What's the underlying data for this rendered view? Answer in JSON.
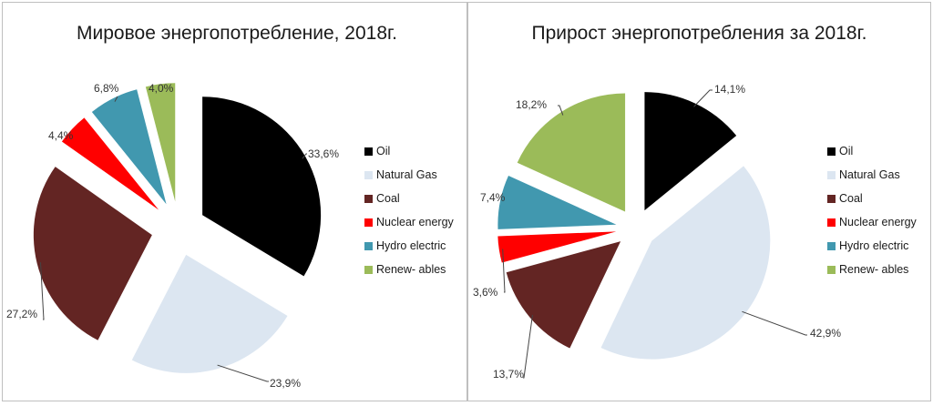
{
  "chart_data": [
    {
      "type": "pie",
      "title": "Мировое энергопотребление, 2018г.",
      "categories": [
        "Oil",
        "Natural Gas",
        "Coal",
        "Nuclear energy",
        "Hydro electric",
        "Renew- ables"
      ],
      "values": [
        33.6,
        23.9,
        27.2,
        4.4,
        6.8,
        4.0
      ],
      "labels": [
        "33,6%",
        "23,9%",
        "27,2%",
        "4,4%",
        "6,8%",
        "4,0%"
      ],
      "colors": [
        "#000000",
        "#dce6f1",
        "#632523",
        "#ff0000",
        "#4198af",
        "#9bbb59"
      ],
      "legend_position": "right",
      "exploded": true
    },
    {
      "type": "pie",
      "title": "Прирост энергопотребления за  2018г.",
      "categories": [
        "Oil",
        "Natural Gas",
        "Coal",
        "Nuclear energy",
        "Hydro electric",
        "Renew- ables"
      ],
      "values": [
        14.1,
        42.9,
        13.7,
        3.6,
        7.4,
        18.2
      ],
      "labels": [
        "14,1%",
        "42,9%",
        "13,7%",
        "3,6%",
        "7,4%",
        "18,2%"
      ],
      "colors": [
        "#000000",
        "#dce6f1",
        "#632523",
        "#ff0000",
        "#4198af",
        "#9bbb59"
      ],
      "legend_position": "right",
      "exploded": true
    }
  ],
  "left": {
    "title": "Мировое энергопотребление, 2018г.",
    "legend": [
      "Oil",
      "Natural Gas",
      "Coal",
      "Nuclear energy",
      "Hydro electric",
      "Renew- ables"
    ]
  },
  "right": {
    "title": "Прирост энергопотребления за  2018г.",
    "legend": [
      "Oil",
      "Natural Gas",
      "Coal",
      "Nuclear energy",
      "Hydro electric",
      "Renew- ables"
    ]
  }
}
